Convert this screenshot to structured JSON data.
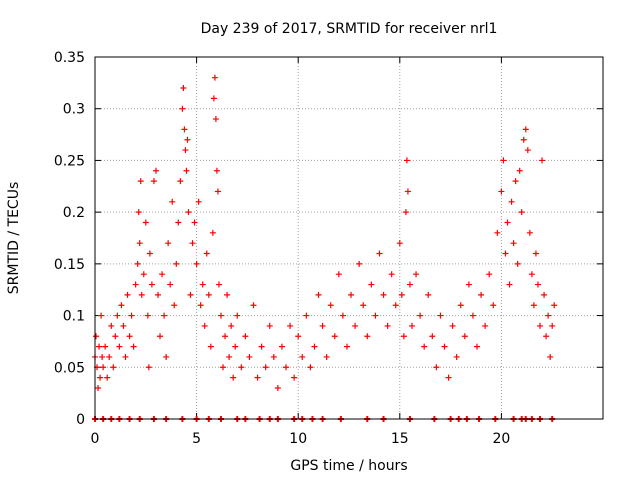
{
  "chart_data": {
    "type": "scatter",
    "title": "Day 239 of 2017, SRMTID for receiver nrl1",
    "xlabel": "GPS time / hours",
    "ylabel": "SRMTID / TECUs",
    "xlim": [
      0,
      25
    ],
    "ylim": [
      0,
      0.35
    ],
    "x_ticks": [
      0,
      5,
      10,
      15,
      20
    ],
    "x_tick_labels": [
      "0",
      "5",
      "10",
      "15",
      "20"
    ],
    "y_ticks": [
      0,
      0.05,
      0.1,
      0.15,
      0.2,
      0.25,
      0.3,
      0.35
    ],
    "y_tick_labels": [
      "0",
      "0.05",
      "0.1",
      "0.15",
      "0.2",
      "0.25",
      "0.3",
      "0.35"
    ],
    "grid": true,
    "marker": "+",
    "color": "#ff0000",
    "series": [
      {
        "name": "SRMTID",
        "points": [
          [
            0.0,
            0.06
          ],
          [
            0.05,
            0.08
          ],
          [
            0.1,
            0.05
          ],
          [
            0.15,
            0.03
          ],
          [
            0.2,
            0.07
          ],
          [
            0.25,
            0.04
          ],
          [
            0.3,
            0.1
          ],
          [
            0.35,
            0.06
          ],
          [
            0.4,
            0.05
          ],
          [
            0.5,
            0.07
          ],
          [
            0.6,
            0.04
          ],
          [
            0.7,
            0.06
          ],
          [
            0.8,
            0.09
          ],
          [
            0.9,
            0.05
          ],
          [
            1.0,
            0.08
          ],
          [
            1.1,
            0.1
          ],
          [
            1.2,
            0.07
          ],
          [
            1.3,
            0.11
          ],
          [
            1.4,
            0.09
          ],
          [
            1.5,
            0.06
          ],
          [
            1.6,
            0.12
          ],
          [
            1.7,
            0.08
          ],
          [
            1.8,
            0.1
          ],
          [
            1.9,
            0.07
          ],
          [
            2.0,
            0.13
          ],
          [
            2.1,
            0.15
          ],
          [
            2.15,
            0.2
          ],
          [
            2.2,
            0.17
          ],
          [
            2.25,
            0.23
          ],
          [
            2.3,
            0.12
          ],
          [
            2.4,
            0.14
          ],
          [
            2.5,
            0.19
          ],
          [
            2.6,
            0.1
          ],
          [
            2.65,
            0.05
          ],
          [
            2.7,
            0.16
          ],
          [
            2.8,
            0.13
          ],
          [
            2.9,
            0.23
          ],
          [
            3.0,
            0.24
          ],
          [
            3.1,
            0.12
          ],
          [
            3.2,
            0.08
          ],
          [
            3.3,
            0.14
          ],
          [
            3.4,
            0.1
          ],
          [
            3.5,
            0.06
          ],
          [
            3.6,
            0.17
          ],
          [
            3.7,
            0.13
          ],
          [
            3.8,
            0.21
          ],
          [
            3.9,
            0.11
          ],
          [
            4.0,
            0.15
          ],
          [
            4.1,
            0.19
          ],
          [
            4.2,
            0.23
          ],
          [
            4.3,
            0.3
          ],
          [
            4.35,
            0.32
          ],
          [
            4.4,
            0.28
          ],
          [
            4.45,
            0.26
          ],
          [
            4.5,
            0.24
          ],
          [
            4.55,
            0.27
          ],
          [
            4.6,
            0.2
          ],
          [
            4.7,
            0.12
          ],
          [
            4.8,
            0.17
          ],
          [
            4.9,
            0.19
          ],
          [
            5.0,
            0.15
          ],
          [
            5.1,
            0.21
          ],
          [
            5.2,
            0.11
          ],
          [
            5.3,
            0.13
          ],
          [
            5.4,
            0.09
          ],
          [
            5.5,
            0.16
          ],
          [
            5.6,
            0.12
          ],
          [
            5.7,
            0.07
          ],
          [
            5.8,
            0.18
          ],
          [
            5.85,
            0.31
          ],
          [
            5.9,
            0.33
          ],
          [
            5.95,
            0.29
          ],
          [
            6.0,
            0.24
          ],
          [
            6.05,
            0.22
          ],
          [
            6.1,
            0.13
          ],
          [
            6.2,
            0.1
          ],
          [
            6.3,
            0.05
          ],
          [
            6.4,
            0.08
          ],
          [
            6.5,
            0.12
          ],
          [
            6.6,
            0.06
          ],
          [
            6.7,
            0.09
          ],
          [
            6.8,
            0.04
          ],
          [
            6.9,
            0.07
          ],
          [
            7.0,
            0.1
          ],
          [
            7.2,
            0.05
          ],
          [
            7.4,
            0.08
          ],
          [
            7.6,
            0.06
          ],
          [
            7.8,
            0.11
          ],
          [
            8.0,
            0.04
          ],
          [
            8.2,
            0.07
          ],
          [
            8.4,
            0.05
          ],
          [
            8.6,
            0.09
          ],
          [
            8.8,
            0.06
          ],
          [
            9.0,
            0.03
          ],
          [
            9.2,
            0.07
          ],
          [
            9.4,
            0.05
          ],
          [
            9.6,
            0.09
          ],
          [
            9.8,
            0.04
          ],
          [
            10.0,
            0.08
          ],
          [
            10.2,
            0.06
          ],
          [
            10.4,
            0.1
          ],
          [
            10.6,
            0.05
          ],
          [
            10.8,
            0.07
          ],
          [
            11.0,
            0.12
          ],
          [
            11.2,
            0.09
          ],
          [
            11.4,
            0.06
          ],
          [
            11.6,
            0.11
          ],
          [
            11.8,
            0.08
          ],
          [
            12.0,
            0.14
          ],
          [
            12.2,
            0.1
          ],
          [
            12.4,
            0.07
          ],
          [
            12.6,
            0.12
          ],
          [
            12.8,
            0.09
          ],
          [
            13.0,
            0.15
          ],
          [
            13.2,
            0.11
          ],
          [
            13.4,
            0.08
          ],
          [
            13.6,
            0.13
          ],
          [
            13.8,
            0.1
          ],
          [
            14.0,
            0.16
          ],
          [
            14.2,
            0.12
          ],
          [
            14.4,
            0.09
          ],
          [
            14.6,
            0.14
          ],
          [
            14.8,
            0.11
          ],
          [
            15.0,
            0.17
          ],
          [
            15.1,
            0.12
          ],
          [
            15.2,
            0.08
          ],
          [
            15.3,
            0.2
          ],
          [
            15.35,
            0.25
          ],
          [
            15.4,
            0.22
          ],
          [
            15.5,
            0.13
          ],
          [
            15.6,
            0.09
          ],
          [
            15.8,
            0.14
          ],
          [
            16.0,
            0.1
          ],
          [
            16.2,
            0.07
          ],
          [
            16.4,
            0.12
          ],
          [
            16.6,
            0.08
          ],
          [
            16.8,
            0.05
          ],
          [
            17.0,
            0.1
          ],
          [
            17.2,
            0.07
          ],
          [
            17.4,
            0.04
          ],
          [
            17.6,
            0.09
          ],
          [
            17.8,
            0.06
          ],
          [
            18.0,
            0.11
          ],
          [
            18.2,
            0.08
          ],
          [
            18.4,
            0.13
          ],
          [
            18.6,
            0.1
          ],
          [
            18.8,
            0.07
          ],
          [
            19.0,
            0.12
          ],
          [
            19.2,
            0.09
          ],
          [
            19.4,
            0.14
          ],
          [
            19.6,
            0.11
          ],
          [
            19.8,
            0.18
          ],
          [
            20.0,
            0.22
          ],
          [
            20.1,
            0.25
          ],
          [
            20.2,
            0.16
          ],
          [
            20.3,
            0.19
          ],
          [
            20.4,
            0.13
          ],
          [
            20.5,
            0.21
          ],
          [
            20.6,
            0.17
          ],
          [
            20.7,
            0.23
          ],
          [
            20.8,
            0.15
          ],
          [
            20.9,
            0.24
          ],
          [
            21.0,
            0.2
          ],
          [
            21.1,
            0.27
          ],
          [
            21.2,
            0.28
          ],
          [
            21.3,
            0.26
          ],
          [
            21.4,
            0.18
          ],
          [
            21.5,
            0.14
          ],
          [
            21.6,
            0.11
          ],
          [
            21.7,
            0.16
          ],
          [
            21.8,
            0.13
          ],
          [
            21.9,
            0.09
          ],
          [
            22.0,
            0.25
          ],
          [
            22.1,
            0.12
          ],
          [
            22.2,
            0.08
          ],
          [
            22.3,
            0.1
          ],
          [
            22.4,
            0.06
          ],
          [
            22.5,
            0.09
          ],
          [
            22.6,
            0.11
          ]
        ]
      }
    ],
    "zero_points_x": [
      0.0,
      0.4,
      0.8,
      1.2,
      1.7,
      2.2,
      2.9,
      3.5,
      4.3,
      5.0,
      5.6,
      6.2,
      7.0,
      7.4,
      8.1,
      8.6,
      9.0,
      9.8,
      10.2,
      10.7,
      11.2,
      12.1,
      13.4,
      14.2,
      15.5,
      16.7,
      17.5,
      17.9,
      18.3,
      18.9,
      19.7,
      20.6,
      21.0,
      21.2,
      21.5,
      21.9,
      22.5
    ]
  }
}
